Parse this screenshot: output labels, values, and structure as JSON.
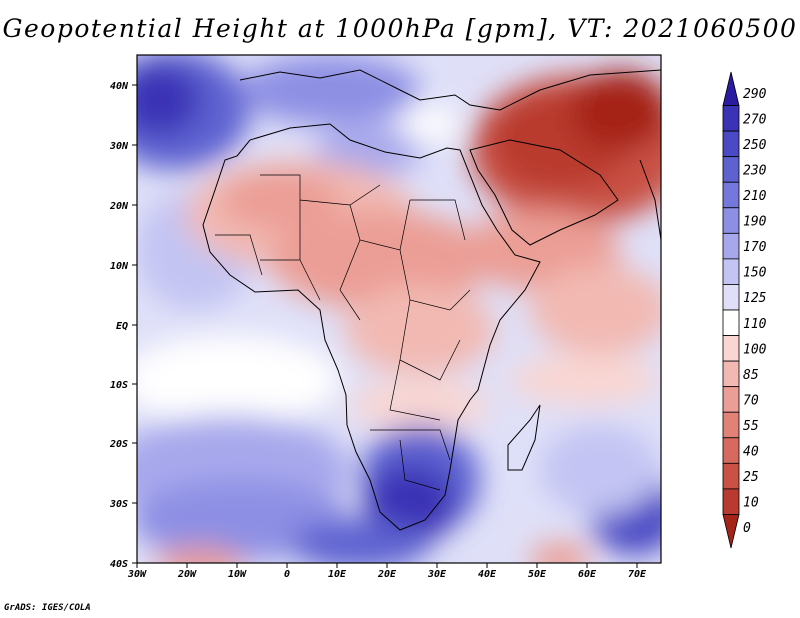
{
  "title": "Geopotential Height at 1000hPa [gpm], VT: 2021060500",
  "credit": "GrADS: IGES/COLA",
  "axes": {
    "lon_labels": [
      "30W",
      "20W",
      "10W",
      "0",
      "10E",
      "20E",
      "30E",
      "40E",
      "50E",
      "60E",
      "70E"
    ],
    "lat_labels": [
      "40N",
      "30N",
      "20N",
      "10N",
      "EQ",
      "10S",
      "20S",
      "30S",
      "40S"
    ]
  },
  "map_extent": {
    "lon": [
      -30,
      75
    ],
    "lat": [
      -40,
      45
    ]
  },
  "colorbar": {
    "levels": [
      "290",
      "270",
      "250",
      "230",
      "210",
      "190",
      "170",
      "150",
      "125",
      "110",
      "100",
      "85",
      "70",
      "55",
      "40",
      "25",
      "10",
      "0"
    ],
    "colors": [
      "#2a1ba0",
      "#3a33b5",
      "#4a4ac4",
      "#5d62d0",
      "#7477dc",
      "#8d8fe4",
      "#a7a8ec",
      "#c3c4f3",
      "#dfe0f8",
      "#ffffff",
      "#f9d6d2",
      "#f2b9b2",
      "#eb9e95",
      "#e28277",
      "#d66a5e",
      "#c95145",
      "#b93a2f",
      "#a52418"
    ]
  }
}
